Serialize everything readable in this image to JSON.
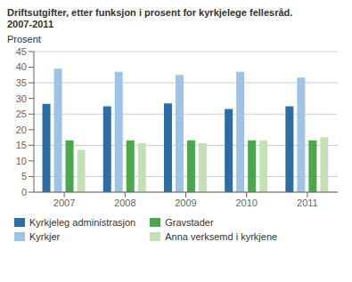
{
  "chart_data": {
    "type": "bar",
    "title": "Driftsutgifter, etter funksjon i prosent for kyrkjelege fellesråd.",
    "subtitle": "2007-2011",
    "y_label": "Prosent",
    "categories": [
      "2007",
      "2008",
      "2009",
      "2010",
      "2011"
    ],
    "series": [
      {
        "name": "Kyrkjeleg administrasjon",
        "color": "#2E6DA4",
        "values": [
          28.3,
          27.5,
          28.4,
          26.6,
          27.5
        ]
      },
      {
        "name": "Kyrkjer",
        "color": "#9DC3E6",
        "values": [
          39.5,
          38.5,
          37.5,
          38.5,
          36.7
        ]
      },
      {
        "name": "Gravstader",
        "color": "#4CA64C",
        "values": [
          16.6,
          16.6,
          16.6,
          16.6,
          16.6
        ]
      },
      {
        "name": "Anna verksemd i kyrkjene",
        "color": "#C5E0B4",
        "values": [
          13.5,
          15.7,
          15.7,
          16.6,
          17.6
        ]
      }
    ],
    "ylim": [
      0,
      45
    ],
    "yticks": [
      0,
      5,
      10,
      15,
      20,
      25,
      30,
      35,
      40,
      45
    ],
    "grid": true,
    "legend": "bottom"
  }
}
